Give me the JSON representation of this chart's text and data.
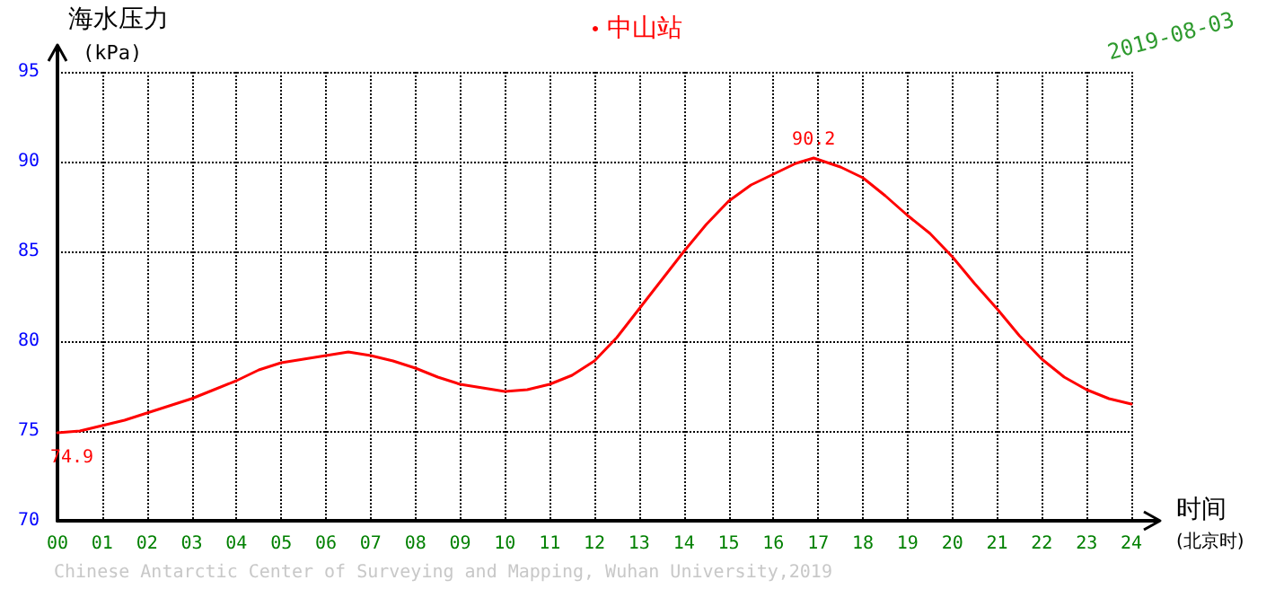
{
  "chart_data": {
    "type": "line",
    "ylabel": "海水压力 (kPa)",
    "xlabel": "时间 (北京时)",
    "x": [
      0,
      0.5,
      1,
      1.5,
      2,
      2.5,
      3,
      3.5,
      4,
      4.5,
      5,
      5.5,
      6,
      6.5,
      7,
      7.5,
      8,
      8.5,
      9,
      9.5,
      10,
      10.5,
      11,
      11.5,
      12,
      12.5,
      13,
      13.5,
      14,
      14.5,
      15,
      15.5,
      16,
      16.5,
      16.9,
      17.5,
      18,
      18.5,
      19,
      19.5,
      20,
      20.5,
      21,
      21.5,
      22,
      22.5,
      23,
      23.5,
      24
    ],
    "series": [
      {
        "name": "中山站",
        "color": "#ff0000",
        "values": [
          74.9,
          75.0,
          75.3,
          75.6,
          76.0,
          76.4,
          76.8,
          77.3,
          77.8,
          78.4,
          78.8,
          79.0,
          79.2,
          79.4,
          79.2,
          78.9,
          78.5,
          78.0,
          77.6,
          77.4,
          77.2,
          77.3,
          77.6,
          78.1,
          78.9,
          80.2,
          81.8,
          83.4,
          85.0,
          86.5,
          87.8,
          88.7,
          89.3,
          89.9,
          90.2,
          89.7,
          89.1,
          88.1,
          87.0,
          86.0,
          84.7,
          83.2,
          81.8,
          80.3,
          79.0,
          78.0,
          77.3,
          76.8,
          76.5
        ]
      }
    ],
    "xlim": [
      0,
      24
    ],
    "xticks": [
      {
        "value": 0,
        "label": "00"
      },
      {
        "value": 1,
        "label": "01"
      },
      {
        "value": 2,
        "label": "02"
      },
      {
        "value": 3,
        "label": "03"
      },
      {
        "value": 4,
        "label": "04"
      },
      {
        "value": 5,
        "label": "05"
      },
      {
        "value": 6,
        "label": "06"
      },
      {
        "value": 7,
        "label": "07"
      },
      {
        "value": 8,
        "label": "08"
      },
      {
        "value": 9,
        "label": "09"
      },
      10,
      11,
      12,
      13,
      14,
      15,
      16,
      17,
      18,
      19,
      20,
      21,
      22,
      23,
      24
    ],
    "ylim": [
      70,
      95
    ],
    "yticks": [
      70,
      75,
      80,
      85,
      90,
      95
    ],
    "grid": true,
    "legend": "top",
    "marker": "none",
    "line_style": "solid",
    "annotations": [
      {
        "text": "74.9",
        "x": 0,
        "y": 74.9
      },
      {
        "text": "90.2",
        "x": 16.9,
        "y": 90.2
      },
      "2019-08-03",
      "Chinese Antarctic Center of Surveying and Mapping, Wuhan University,2019"
    ]
  }
}
